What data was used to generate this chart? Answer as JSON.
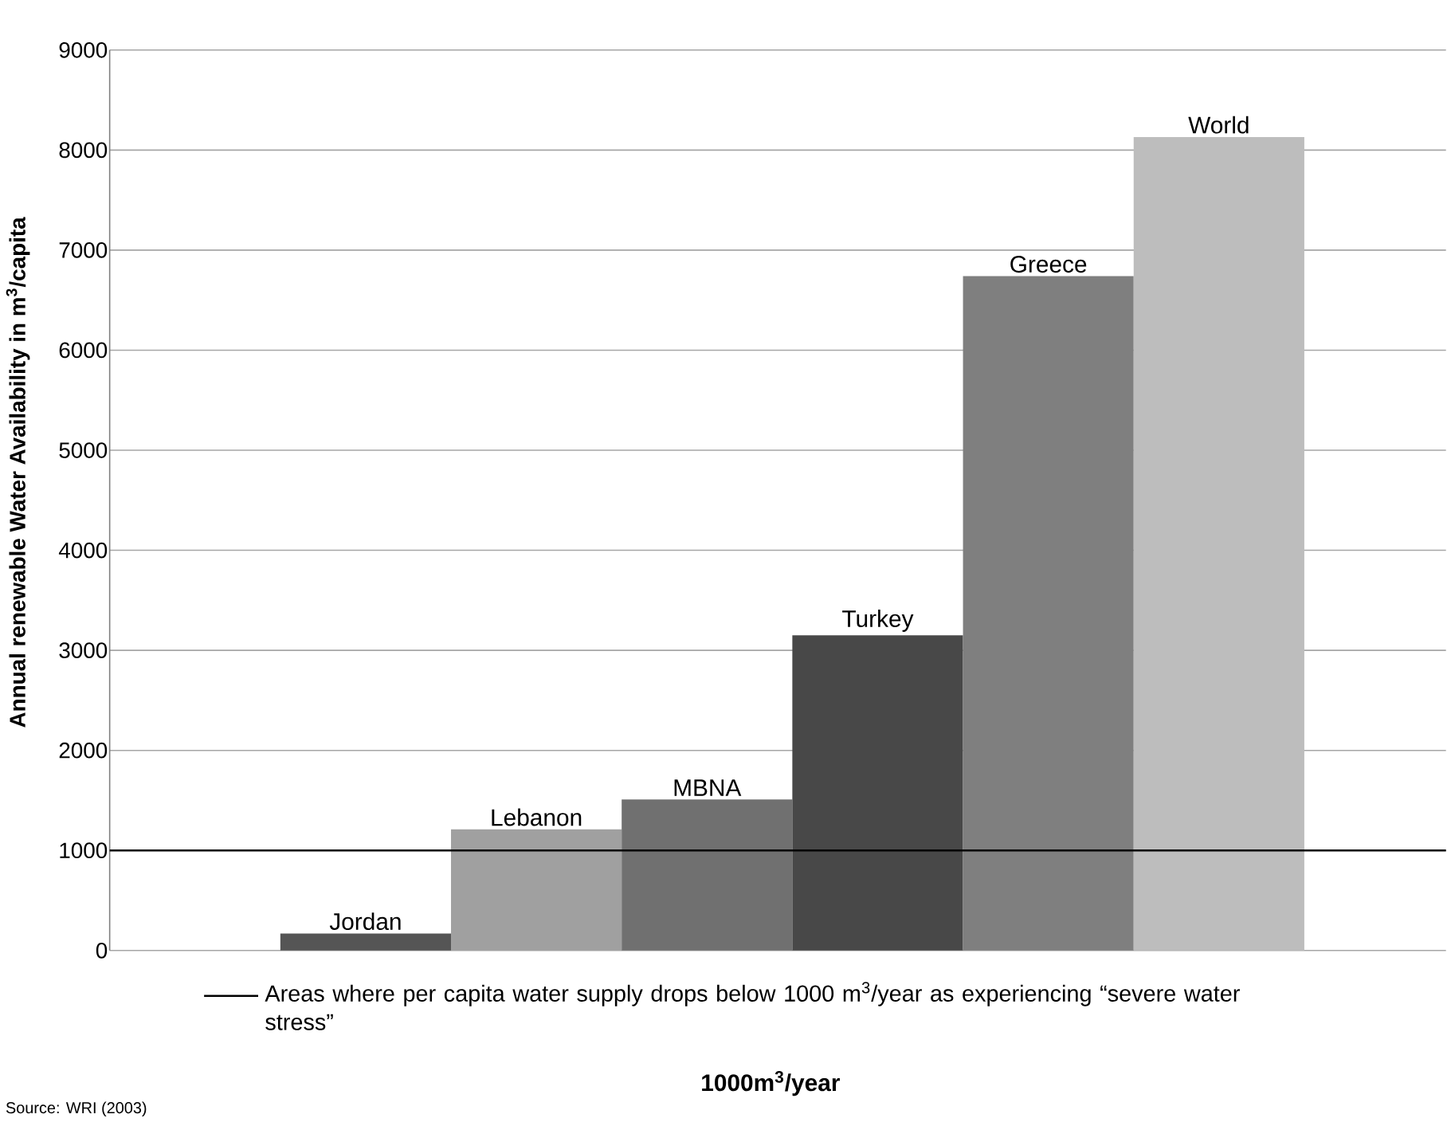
{
  "chart_data": {
    "type": "bar",
    "xlabel": "1000m$^{3}$/year",
    "ylabel": "Annual renewable Water Availability in m$^{3}$/capita",
    "categories": [
      "Jordan",
      "Lebanon",
      "MBNA",
      "Turkey",
      "Greece",
      "World"
    ],
    "values": [
      170,
      1210,
      1510,
      3150,
      6740,
      8130
    ],
    "colors": [
      "#555555",
      "#a0a0a0",
      "#707070",
      "#484848",
      "#7f7f7f",
      "#bdbdbd"
    ],
    "ylim": [
      0,
      9000
    ],
    "yticks": [
      0,
      1000,
      2000,
      3000,
      4000,
      5000,
      6000,
      7000,
      8000,
      9000
    ],
    "grid": "y",
    "tick_labels": "y",
    "ref_lines": [
      {
        "axis": "y",
        "value": 1000,
        "label": "Areas where per capita water supply drops below 1000 m$^{3}$/year as experiencing “severe water stress”",
        "color": "#000000",
        "line_style": "solid"
      }
    ],
    "annotations": [
      "Source: WRI (2003)"
    ]
  }
}
